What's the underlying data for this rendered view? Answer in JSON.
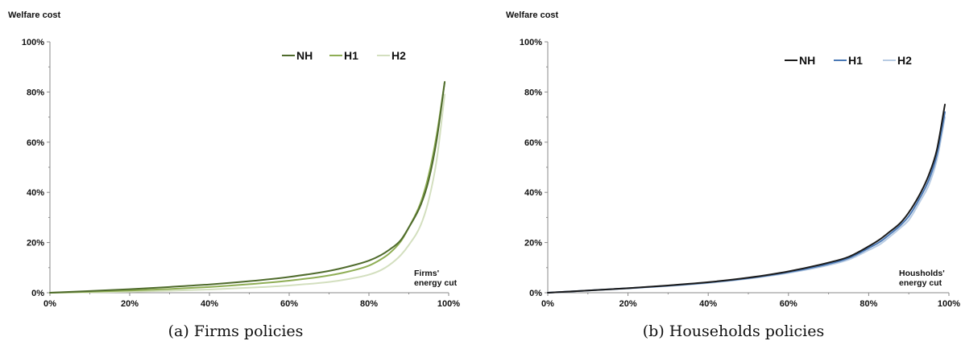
{
  "chart_data": [
    {
      "type": "line",
      "ylabel": "Welfare cost",
      "xlabel": "Firms' energy cut",
      "caption": "(a) Firms policies",
      "xlim": [
        0,
        100
      ],
      "ylim": [
        0,
        100
      ],
      "x_ticks": [
        "0%",
        "20%",
        "40%",
        "60%",
        "80%",
        "100%"
      ],
      "y_ticks": [
        "0%",
        "20%",
        "40%",
        "60%",
        "80%",
        "100%"
      ],
      "legend_position": "top-center",
      "grid": false,
      "x": [
        0,
        10,
        20,
        30,
        40,
        50,
        60,
        70,
        75,
        80,
        83,
        85,
        88,
        90,
        93,
        95,
        97,
        99
      ],
      "series": [
        {
          "name": "NH",
          "color": "#4f6b2c",
          "values": [
            0,
            0.7,
            1.4,
            2.3,
            3.3,
            4.6,
            6.3,
            8.7,
            10.5,
            12.8,
            15,
            17,
            21,
            26,
            35,
            45,
            61,
            84
          ]
        },
        {
          "name": "H1",
          "color": "#8fae55",
          "values": [
            0,
            0.4,
            0.9,
            1.5,
            2.3,
            3.4,
            4.8,
            6.9,
            8.5,
            10.8,
            13.3,
            15.5,
            20.5,
            26,
            36,
            47,
            63,
            84
          ]
        },
        {
          "name": "H2",
          "color": "#d3dfbf",
          "values": [
            0,
            0.2,
            0.4,
            0.8,
            1.3,
            2.0,
            2.9,
            4.3,
            5.5,
            7.2,
            9,
            10.9,
            15,
            19,
            27,
            37,
            53,
            79
          ]
        }
      ]
    },
    {
      "type": "line",
      "ylabel": "Welfare cost",
      "xlabel": "Housholds' energy cut",
      "caption": "(b) Households policies",
      "xlim": [
        0,
        100
      ],
      "ylim": [
        0,
        100
      ],
      "x_ticks": [
        "0%",
        "20%",
        "40%",
        "60%",
        "80%",
        "100%"
      ],
      "y_ticks": [
        "0%",
        "20%",
        "40%",
        "60%",
        "80%",
        "100%"
      ],
      "legend_position": "top-right",
      "grid": false,
      "x": [
        0,
        10,
        20,
        30,
        40,
        50,
        60,
        70,
        75,
        80,
        83,
        85,
        88,
        90,
        93,
        95,
        97,
        99
      ],
      "series": [
        {
          "name": "NH",
          "color": "#1a1a1a",
          "values": [
            0,
            0.9,
            1.8,
            2.9,
            4.2,
            6.0,
            8.5,
            12.0,
            14.3,
            18.5,
            21.5,
            24,
            28,
            32,
            40,
            47,
            57,
            75
          ]
        },
        {
          "name": "H1",
          "color": "#4a78b5",
          "values": [
            0,
            0.9,
            1.8,
            2.8,
            4.1,
            5.8,
            8.2,
            11.5,
            13.8,
            17.8,
            20.5,
            23,
            27,
            30.5,
            38.5,
            45,
            55,
            72
          ]
        },
        {
          "name": "H2",
          "color": "#b7cbe3",
          "values": [
            0,
            0.85,
            1.7,
            2.7,
            3.9,
            5.6,
            7.9,
            11.0,
            13.2,
            17.0,
            19.5,
            22,
            26,
            29,
            37,
            43,
            53,
            70
          ]
        }
      ]
    }
  ]
}
